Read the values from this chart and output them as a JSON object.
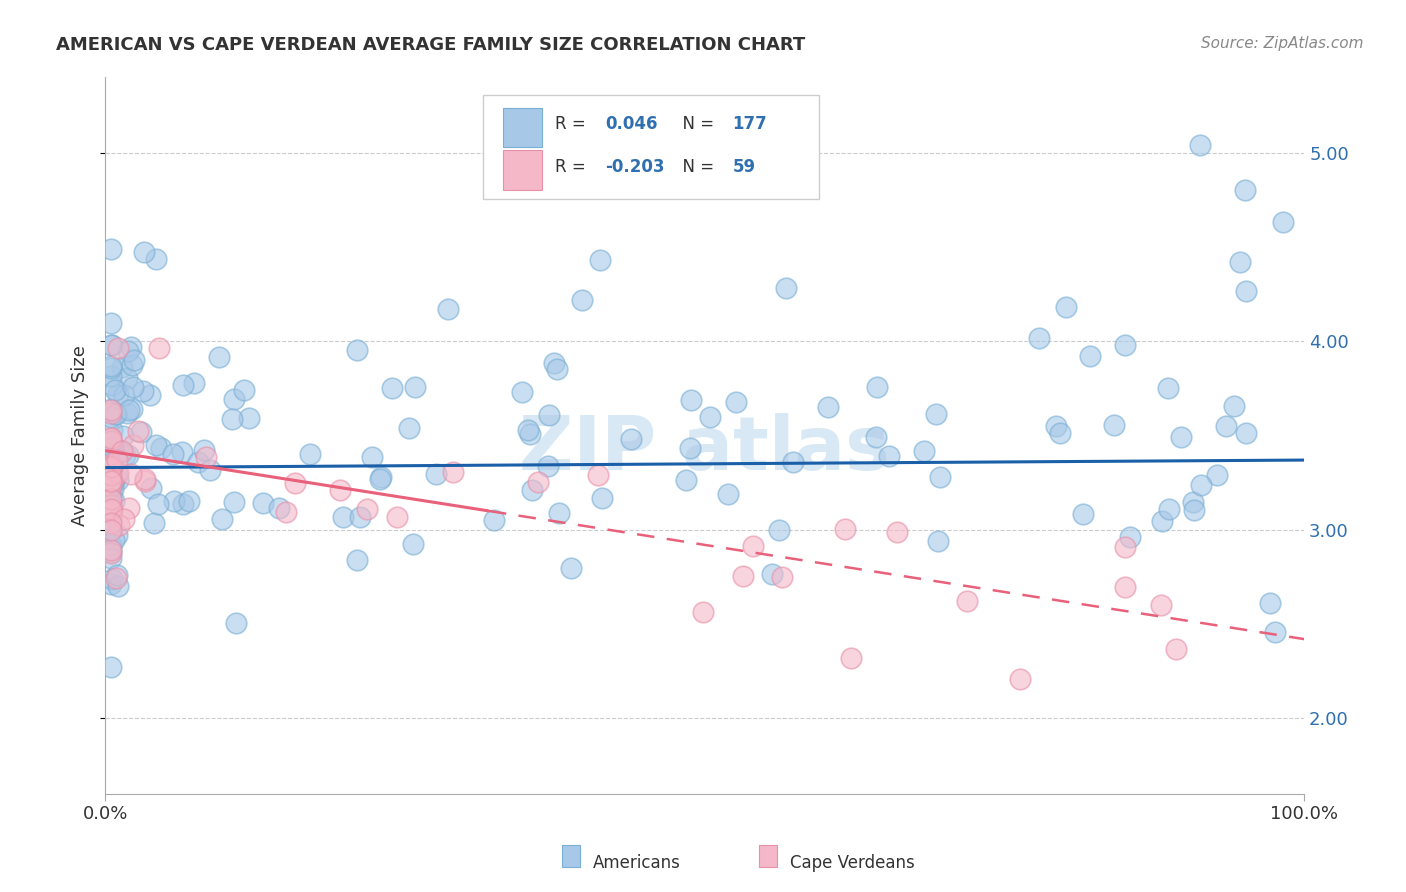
{
  "title": "AMERICAN VS CAPE VERDEAN AVERAGE FAMILY SIZE CORRELATION CHART",
  "source": "Source: ZipAtlas.com",
  "ylabel": "Average Family Size",
  "xlim": [
    0,
    1
  ],
  "ylim": [
    1.6,
    5.4
  ],
  "yticks": [
    2.0,
    3.0,
    4.0,
    5.0
  ],
  "xtick_labels": [
    "0.0%",
    "100.0%"
  ],
  "legend_r_american": "0.046",
  "legend_n_american": "177",
  "legend_r_capeverdean": "-0.203",
  "legend_n_capeverdean": "59",
  "american_color": "#a8c8e8",
  "capeverdean_color": "#f4b8c8",
  "american_edge_color": "#7aafd4",
  "capeverdean_edge_color": "#e890a8",
  "trend_american_color": "#1a5fa8",
  "trend_capeverdean_color": "#e8607a",
  "watermark_color": "#d8e8f4",
  "background_color": "#ffffff",
  "grid_color": "#cccccc",
  "title_color": "#333333",
  "source_color": "#888888",
  "ytick_color": "#3070b0",
  "label_color": "#333333"
}
